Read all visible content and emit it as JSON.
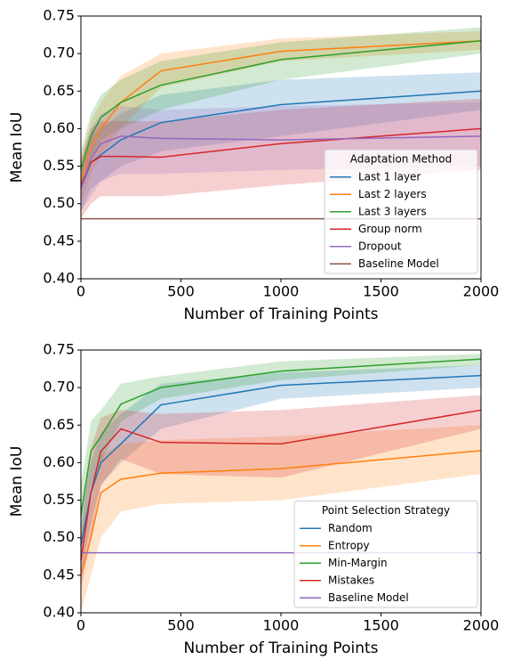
{
  "chart_data": [
    {
      "type": "line",
      "xlabel": "Number of Training Points",
      "ylabel": "Mean IoU",
      "x": [
        0,
        50,
        100,
        200,
        400,
        1000,
        2000
      ],
      "xlim": [
        0,
        2000
      ],
      "xticks": [
        0,
        500,
        1000,
        1500,
        2000
      ],
      "ylim": [
        0.4,
        0.75
      ],
      "yticks": [
        {
          "value": 0.4,
          "label": "0.40"
        },
        0.45,
        {
          "value": 0.5,
          "label": "0.50"
        },
        0.55,
        {
          "value": 0.6,
          "label": "0.60"
        },
        0.65,
        {
          "value": 0.7,
          "label": "0.70"
        },
        0.75
      ],
      "legend_title": "Adaptation Method",
      "legend_loc": "lower right",
      "series": [
        {
          "name": "Last 1 layer",
          "color": "#1f77b4",
          "values": [
            0.52,
            0.555,
            0.565,
            0.585,
            0.608,
            0.632,
            0.65
          ],
          "lower": [
            0.49,
            0.52,
            0.53,
            0.55,
            0.57,
            0.59,
            0.625
          ],
          "upper": [
            0.55,
            0.59,
            0.6,
            0.62,
            0.645,
            0.665,
            0.675
          ]
        },
        {
          "name": "Last 2 layers",
          "color": "#ff7f0e",
          "values": [
            0.53,
            0.575,
            0.6,
            0.635,
            0.677,
            0.703,
            0.717
          ],
          "lower": [
            0.5,
            0.54,
            0.565,
            0.6,
            0.655,
            0.69,
            0.705
          ],
          "upper": [
            0.56,
            0.61,
            0.635,
            0.67,
            0.7,
            0.72,
            0.73
          ]
        },
        {
          "name": "Last 3 layers",
          "color": "#2ca02c",
          "values": [
            0.545,
            0.59,
            0.615,
            0.635,
            0.658,
            0.692,
            0.717
          ],
          "lower": [
            0.52,
            0.56,
            0.585,
            0.6,
            0.625,
            0.665,
            0.7
          ],
          "upper": [
            0.57,
            0.62,
            0.645,
            0.665,
            0.69,
            0.715,
            0.735
          ]
        },
        {
          "name": "Group norm",
          "color": "#d62728",
          "values": [
            0.525,
            0.555,
            0.563,
            0.563,
            0.562,
            0.58,
            0.6
          ],
          "lower": [
            0.48,
            0.5,
            0.51,
            0.51,
            0.51,
            0.525,
            0.545
          ],
          "upper": [
            0.56,
            0.6,
            0.61,
            0.61,
            0.61,
            0.625,
            0.64
          ]
        },
        {
          "name": "Dropout",
          "color": "#9467bd",
          "values": [
            0.52,
            0.56,
            0.58,
            0.59,
            0.587,
            0.585,
            0.59
          ],
          "lower": [
            0.49,
            0.51,
            0.53,
            0.54,
            0.54,
            0.545,
            0.55
          ],
          "upper": [
            0.55,
            0.6,
            0.62,
            0.63,
            0.625,
            0.63,
            0.635
          ]
        },
        {
          "name": "Baseline Model",
          "color": "#8c564b",
          "values": [
            0.48,
            0.48,
            0.48,
            0.48,
            0.48,
            0.48,
            0.48
          ]
        }
      ]
    },
    {
      "type": "line",
      "xlabel": "Number of Training Points",
      "ylabel": "Mean IoU",
      "x": [
        0,
        50,
        100,
        200,
        400,
        1000,
        2000
      ],
      "xlim": [
        0,
        2000
      ],
      "xticks": [
        0,
        500,
        1000,
        1500,
        2000
      ],
      "ylim": [
        0.4,
        0.75
      ],
      "yticks": [
        {
          "value": 0.4,
          "label": "0.40"
        },
        0.45,
        {
          "value": 0.5,
          "label": "0.50"
        },
        0.55,
        {
          "value": 0.6,
          "label": "0.60"
        },
        0.65,
        {
          "value": 0.7,
          "label": "0.70"
        },
        0.75
      ],
      "legend_title": "Point Selection Strategy",
      "legend_loc": "lower right",
      "series": [
        {
          "name": "Random",
          "color": "#1f77b4",
          "values": [
            0.49,
            0.56,
            0.6,
            0.625,
            0.677,
            0.703,
            0.716
          ],
          "lower": [
            0.45,
            0.52,
            0.57,
            0.6,
            0.645,
            0.685,
            0.7
          ],
          "upper": [
            0.53,
            0.6,
            0.64,
            0.665,
            0.705,
            0.72,
            0.73
          ]
        },
        {
          "name": "Entropy",
          "color": "#ff7f0e",
          "values": [
            0.45,
            0.5,
            0.56,
            0.578,
            0.586,
            0.592,
            0.616
          ],
          "lower": [
            0.4,
            0.45,
            0.5,
            0.535,
            0.545,
            0.55,
            0.585
          ],
          "upper": [
            0.5,
            0.55,
            0.61,
            0.625,
            0.63,
            0.635,
            0.65
          ]
        },
        {
          "name": "Min-Margin",
          "color": "#2ca02c",
          "values": [
            0.53,
            0.615,
            0.635,
            0.678,
            0.7,
            0.722,
            0.738
          ],
          "lower": [
            0.49,
            0.57,
            0.6,
            0.655,
            0.685,
            0.71,
            0.73
          ],
          "upper": [
            0.57,
            0.655,
            0.67,
            0.705,
            0.715,
            0.735,
            0.745
          ]
        },
        {
          "name": "Mistakes",
          "color": "#d62728",
          "values": [
            0.47,
            0.56,
            0.615,
            0.645,
            0.627,
            0.625,
            0.67
          ],
          "lower": [
            0.43,
            0.5,
            0.57,
            0.605,
            0.585,
            0.58,
            0.645
          ],
          "upper": [
            0.51,
            0.62,
            0.66,
            0.67,
            0.665,
            0.67,
            0.69
          ]
        },
        {
          "name": "Baseline Model",
          "color": "#9467bd",
          "values": [
            0.48,
            0.48,
            0.48,
            0.48,
            0.48,
            0.48,
            0.48
          ]
        }
      ]
    }
  ]
}
